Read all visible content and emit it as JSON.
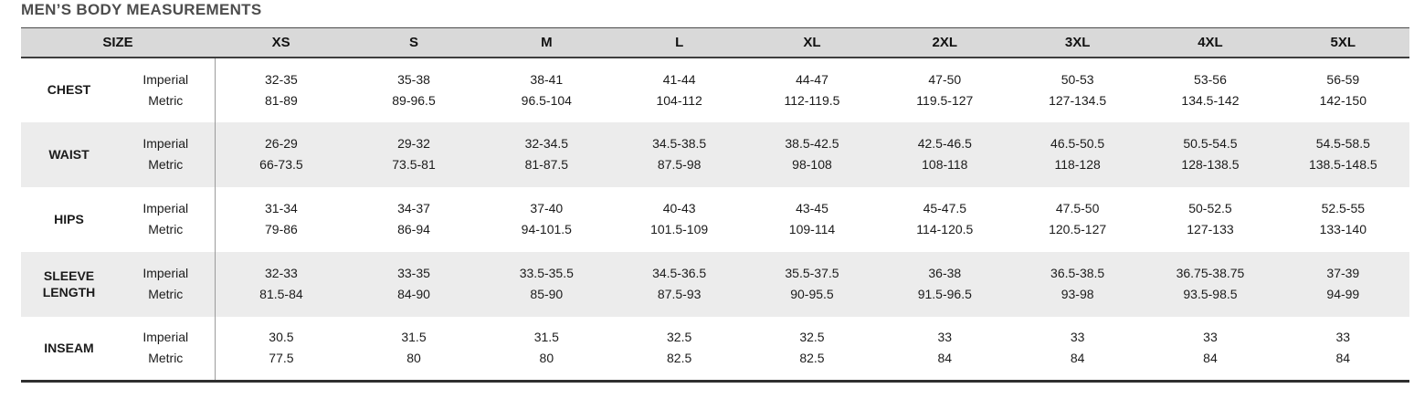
{
  "title": "MEN’S BODY MEASUREMENTS",
  "colors": {
    "header_bg": "#d9d9d9",
    "stripe_bg": "#ececec",
    "title_text": "#4d4d4d",
    "border_dark": "#2f2f2f",
    "divider": "#9b9b9b"
  },
  "table": {
    "size_label": "SIZE",
    "sizes": [
      "XS",
      "S",
      "M",
      "L",
      "XL",
      "2XL",
      "3XL",
      "4XL",
      "5XL"
    ],
    "unit_labels": {
      "imperial": "Imperial",
      "metric": "Metric"
    },
    "rows": [
      {
        "label": "CHEST",
        "imperial": [
          "32-35",
          "35-38",
          "38-41",
          "41-44",
          "44-47",
          "47-50",
          "50-53",
          "53-56",
          "56-59"
        ],
        "metric": [
          "81-89",
          "89-96.5",
          "96.5-104",
          "104-112",
          "112-119.5",
          "119.5-127",
          "127-134.5",
          "134.5-142",
          "142-150"
        ]
      },
      {
        "label": "WAIST",
        "imperial": [
          "26-29",
          "29-32",
          "32-34.5",
          "34.5-38.5",
          "38.5-42.5",
          "42.5-46.5",
          "46.5-50.5",
          "50.5-54.5",
          "54.5-58.5"
        ],
        "metric": [
          "66-73.5",
          "73.5-81",
          "81-87.5",
          "87.5-98",
          "98-108",
          "108-118",
          "118-128",
          "128-138.5",
          "138.5-148.5"
        ]
      },
      {
        "label": "HIPS",
        "imperial": [
          "31-34",
          "34-37",
          "37-40",
          "40-43",
          "43-45",
          "45-47.5",
          "47.5-50",
          "50-52.5",
          "52.5-55"
        ],
        "metric": [
          "79-86",
          "86-94",
          "94-101.5",
          "101.5-109",
          "109-114",
          "114-120.5",
          "120.5-127",
          "127-133",
          "133-140"
        ]
      },
      {
        "label": "SLEEVE LENGTH",
        "imperial": [
          "32-33",
          "33-35",
          "33.5-35.5",
          "34.5-36.5",
          "35.5-37.5",
          "36-38",
          "36.5-38.5",
          "36.75-38.75",
          "37-39"
        ],
        "metric": [
          "81.5-84",
          "84-90",
          "85-90",
          "87.5-93",
          "90-95.5",
          "91.5-96.5",
          "93-98",
          "93.5-98.5",
          "94-99"
        ]
      },
      {
        "label": "INSEAM",
        "imperial": [
          "30.5",
          "31.5",
          "31.5",
          "32.5",
          "32.5",
          "33",
          "33",
          "33",
          "33"
        ],
        "metric": [
          "77.5",
          "80",
          "80",
          "82.5",
          "82.5",
          "84",
          "84",
          "84",
          "84"
        ]
      }
    ]
  }
}
